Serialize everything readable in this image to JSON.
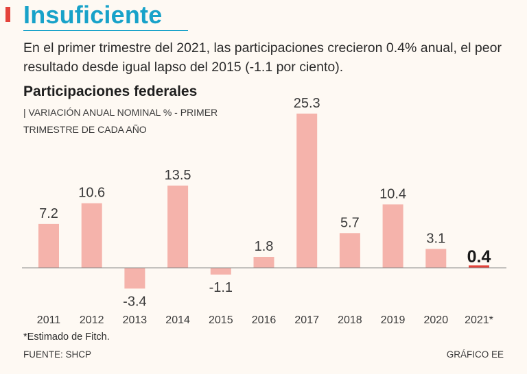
{
  "header": {
    "title": "Insuficiente",
    "intro": "En el primer trimestre del 2021, las participaciones crecieron 0.4% anual, el peor resultado desde igual lapso del 2015 (-1.1 por ciento)."
  },
  "colors": {
    "accent": "#e4433b",
    "title": "#18a2c9",
    "bar": "#f5b3ab",
    "highlight_bar": "#e4433b",
    "background": "#fef9f3"
  },
  "chart_data": {
    "type": "bar",
    "title": "Participaciones federales",
    "subtitle": "| VARIACIÓN ANUAL NOMINAL % - PRIMER TRIMESTRE DE CADA AÑO",
    "categories": [
      "2011",
      "2012",
      "2013",
      "2014",
      "2015",
      "2016",
      "2017",
      "2018",
      "2019",
      "2020",
      "2021*"
    ],
    "values": [
      7.2,
      10.6,
      -3.4,
      13.5,
      -1.1,
      1.8,
      25.3,
      5.7,
      10.4,
      3.1,
      0.4
    ],
    "value_labels": [
      "7.2",
      "10.6",
      "-3.4",
      "13.5",
      "-1.1",
      "1.8",
      "25.3",
      "5.7",
      "10.4",
      "3.1",
      "0.4"
    ],
    "highlight_index": 10,
    "xlabel": "",
    "ylabel": "",
    "ylim": [
      -4,
      26
    ],
    "grid": false,
    "legend": "none"
  },
  "footer": {
    "footnote": "*Estimado de Fitch.",
    "source": "FUENTE: SHCP",
    "credit": "GRÁFICO EE"
  }
}
